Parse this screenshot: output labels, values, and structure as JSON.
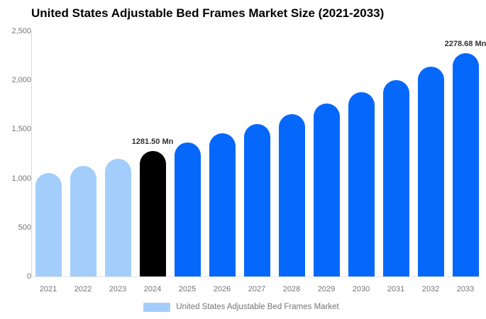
{
  "chart_data": {
    "type": "bar",
    "title": "United States Adjustable Bed Frames Market Size (2021-2033)",
    "unit": "Mn",
    "categories": [
      "2021",
      "2022",
      "2023",
      "2024",
      "2025",
      "2026",
      "2027",
      "2028",
      "2029",
      "2030",
      "2031",
      "2032",
      "2033"
    ],
    "values": [
      1058,
      1128,
      1202,
      1281.5,
      1366,
      1456,
      1552,
      1655,
      1764,
      1881,
      2005,
      2137,
      2278.68
    ],
    "bar_colors": [
      "#a3cefb",
      "#a3cefb",
      "#a3cefb",
      "#000000",
      "#0568fb",
      "#0568fb",
      "#0568fb",
      "#0568fb",
      "#0568fb",
      "#0568fb",
      "#0568fb",
      "#0568fb",
      "#0568fb"
    ],
    "annotations": [
      {
        "category_index": 3,
        "text": "1281.50 Mn"
      },
      {
        "category_index": 12,
        "text": "2278.68 Mn"
      }
    ],
    "y_ticks": [
      {
        "label": "0",
        "value": 0
      },
      {
        "label": "500",
        "value": 500
      },
      {
        "label": "1,000",
        "value": 1000
      },
      {
        "label": "1,500",
        "value": 1500
      },
      {
        "label": "2,000",
        "value": 2000
      },
      {
        "label": "2,500",
        "value": 2500
      }
    ],
    "ylim": [
      0,
      2500
    ],
    "gridlines": false,
    "legend": {
      "label": "United States Adjustable Bed Frames Market",
      "swatch_color": "#a3cefb",
      "position": "bottom"
    },
    "colors": {
      "historical": "#a3cefb",
      "base_year": "#000000",
      "forecast": "#0568fb",
      "axis_line": "#d9d9d9",
      "tick_text": "#757575",
      "data_label": "#333333"
    }
  }
}
